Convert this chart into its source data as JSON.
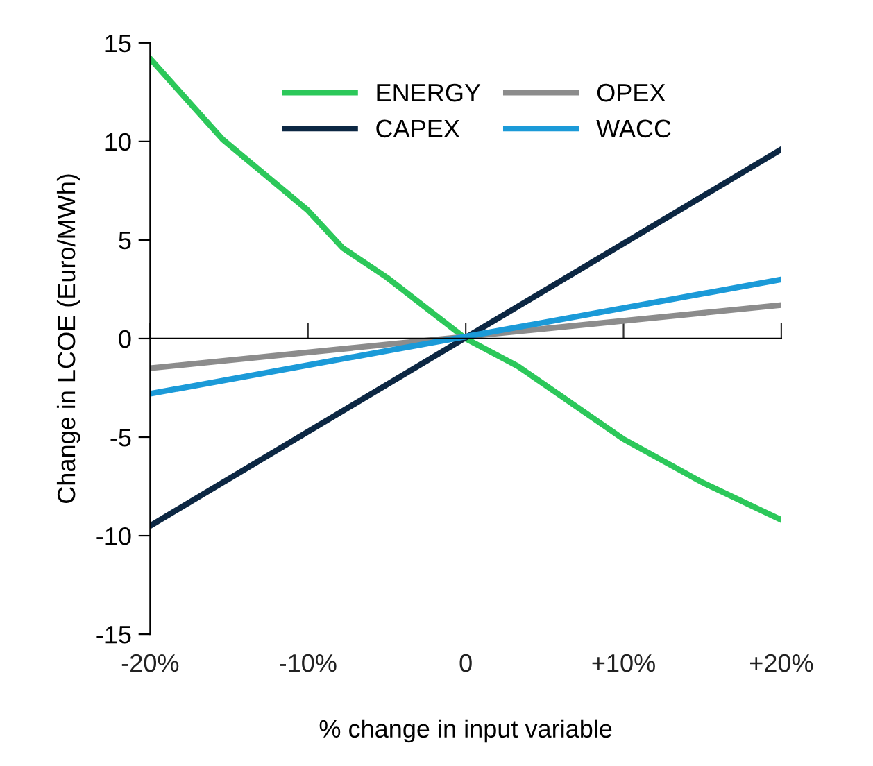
{
  "chart_data": {
    "type": "line",
    "xlabel": "% change in input variable",
    "ylabel": "Change in LCOE (Euro/MWh)",
    "xlim": [
      -20,
      20
    ],
    "ylim": [
      -15,
      15
    ],
    "xticks": [
      {
        "value": -20,
        "label": "-20%"
      },
      {
        "value": -10,
        "label": "-10%"
      },
      0,
      {
        "value": 10,
        "label": "+10%"
      },
      {
        "value": 20,
        "label": "+20%"
      }
    ],
    "yticks": [
      -15,
      -10,
      -5,
      0,
      5,
      10,
      15
    ],
    "legend": "top",
    "marker": "none",
    "line_style": "solid",
    "series": [
      {
        "name": "ENERGY",
        "color": "#2cc85a",
        "x": [
          -20,
          -15.4,
          -10,
          -7.8,
          -5,
          0,
          3.3,
          10,
          15,
          20
        ],
        "values": [
          14.2,
          10.1,
          6.5,
          4.6,
          3.1,
          0,
          -1.4,
          -5.1,
          -7.3,
          -9.2
        ]
      },
      {
        "name": "CAPEX",
        "color": "#0c2743",
        "x": [
          -20,
          20
        ],
        "values": [
          -9.5,
          9.6
        ]
      },
      {
        "name": "OPEX",
        "color": "#8c8c8c",
        "x": [
          -20,
          20
        ],
        "values": [
          -1.5,
          1.7
        ]
      },
      {
        "name": "WACC",
        "color": "#1b9ad8",
        "x": [
          -20,
          20
        ],
        "values": [
          -2.8,
          3.0
        ]
      }
    ]
  }
}
